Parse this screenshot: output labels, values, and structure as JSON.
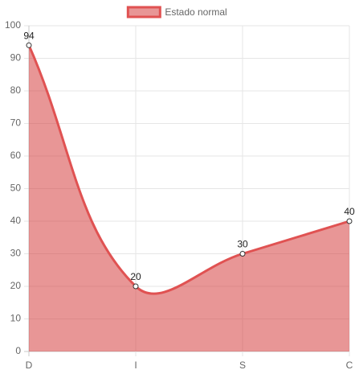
{
  "chart_data": {
    "type": "line",
    "categories": [
      "D",
      "I",
      "S",
      "C"
    ],
    "series": [
      {
        "name": "Estado normal",
        "color": "#e05252",
        "fill": "rgba(214,64,64,0.55)",
        "values": [
          94,
          20,
          30,
          40
        ]
      }
    ],
    "ylim": [
      0,
      100
    ],
    "yticks": [
      0,
      10,
      20,
      30,
      40,
      50,
      60,
      70,
      80,
      90,
      100
    ],
    "grid": true,
    "legend": "top",
    "data_labels": true
  }
}
